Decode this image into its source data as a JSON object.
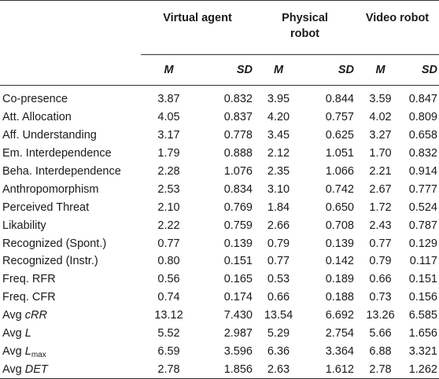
{
  "table": {
    "groups": [
      "Virtual agent",
      "Physical robot",
      "Video robot"
    ],
    "stat_headers": [
      "M",
      "SD"
    ],
    "rows": [
      {
        "label": "Co-presence",
        "values": [
          "3.87",
          "0.832",
          "3.95",
          "0.844",
          "3.59",
          "0.847"
        ]
      },
      {
        "label": "Att. Allocation",
        "values": [
          "4.05",
          "0.837",
          "4.20",
          "0.757",
          "4.02",
          "0.809"
        ]
      },
      {
        "label": "Aff. Understanding",
        "values": [
          "3.17",
          "0.778",
          "3.45",
          "0.625",
          "3.27",
          "0.658"
        ]
      },
      {
        "label": "Em. Interdependence",
        "values": [
          "1.79",
          "0.888",
          "2.12",
          "1.051",
          "1.70",
          "0.832"
        ]
      },
      {
        "label": "Beha. Interdependence",
        "values": [
          "2.28",
          "1.076",
          "2.35",
          "1.066",
          "2.21",
          "0.914"
        ]
      },
      {
        "label": "Anthropomorphism",
        "values": [
          "2.53",
          "0.834",
          "3.10",
          "0.742",
          "2.67",
          "0.777"
        ]
      },
      {
        "label": "Perceived Threat",
        "values": [
          "2.10",
          "0.769",
          "1.84",
          "0.650",
          "1.72",
          "0.524"
        ]
      },
      {
        "label": "Likability",
        "values": [
          "2.22",
          "0.759",
          "2.66",
          "0.708",
          "2.43",
          "0.787"
        ]
      },
      {
        "label": "Recognized (Spont.)",
        "values": [
          "0.77",
          "0.139",
          "0.79",
          "0.139",
          "0.77",
          "0.129"
        ]
      },
      {
        "label": "Recognized (Instr.)",
        "values": [
          "0.80",
          "0.151",
          "0.77",
          "0.142",
          "0.79",
          "0.117"
        ]
      },
      {
        "label": "Freq. RFR",
        "values": [
          "0.56",
          "0.165",
          "0.53",
          "0.189",
          "0.66",
          "0.151"
        ]
      },
      {
        "label": "Freq. CFR",
        "values": [
          "0.74",
          "0.174",
          "0.66",
          "0.188",
          "0.73",
          "0.156"
        ]
      },
      {
        "label_prefix": "Avg ",
        "label_italic": "cRR",
        "values": [
          "13.12",
          "7.430",
          "13.54",
          "6.692",
          "13.26",
          "6.585"
        ]
      },
      {
        "label_prefix": "Avg ",
        "label_italic": "L",
        "values": [
          "5.52",
          "2.987",
          "5.29",
          "2.754",
          "5.66",
          "1.656"
        ]
      },
      {
        "label_prefix": "Avg ",
        "label_italic": "L",
        "label_sub": "max",
        "values": [
          "6.59",
          "3.596",
          "6.36",
          "3.364",
          "6.88",
          "3.321"
        ]
      },
      {
        "label_prefix": "Avg ",
        "label_italic": "DET",
        "values": [
          "2.78",
          "1.856",
          "2.63",
          "1.612",
          "2.78",
          "1.262"
        ]
      }
    ]
  }
}
